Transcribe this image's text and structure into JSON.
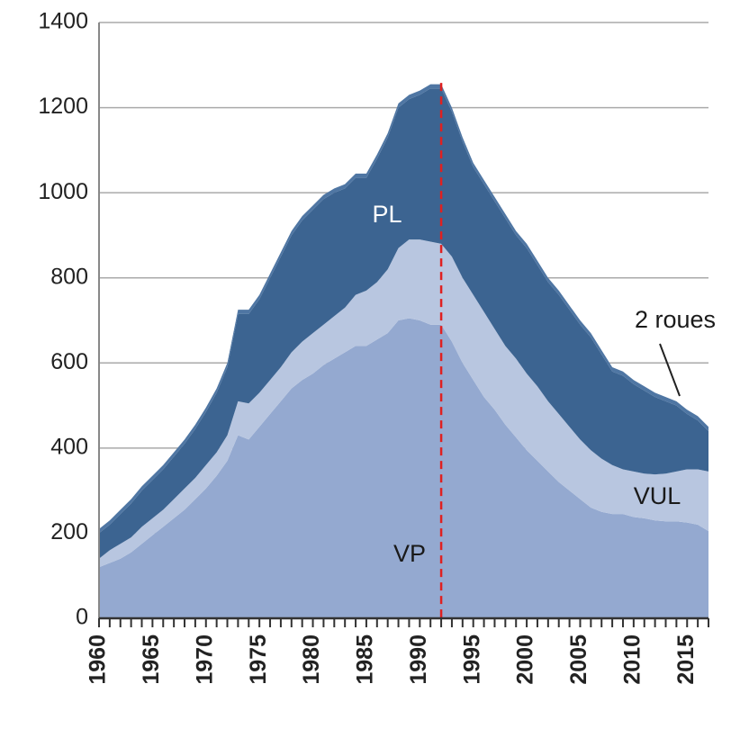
{
  "chart_data": {
    "type": "stacked_area",
    "x": [
      1960,
      1961,
      1962,
      1963,
      1964,
      1965,
      1966,
      1967,
      1968,
      1969,
      1970,
      1971,
      1972,
      1973,
      1974,
      1975,
      1976,
      1977,
      1978,
      1979,
      1980,
      1981,
      1982,
      1983,
      1984,
      1985,
      1986,
      1987,
      1988,
      1989,
      1990,
      1991,
      1992,
      1993,
      1994,
      1995,
      1996,
      1997,
      1998,
      1999,
      2000,
      2001,
      2002,
      2003,
      2004,
      2005,
      2006,
      2007,
      2008,
      2009,
      2010,
      2011,
      2012,
      2013,
      2014,
      2015,
      2016,
      2017
    ],
    "series": [
      {
        "name": "VP",
        "color": "#94a9d0",
        "values": [
          120,
          130,
          140,
          155,
          175,
          195,
          215,
          235,
          255,
          280,
          305,
          335,
          370,
          430,
          420,
          450,
          480,
          510,
          540,
          560,
          575,
          595,
          610,
          625,
          640,
          640,
          655,
          670,
          700,
          705,
          700,
          690,
          690,
          650,
          600,
          560,
          520,
          490,
          455,
          425,
          395,
          370,
          345,
          320,
          300,
          280,
          260,
          250,
          245,
          245,
          238,
          235,
          230,
          228,
          228,
          225,
          220,
          205
        ]
      },
      {
        "name": "VUL",
        "color": "#b8c6e0",
        "values": [
          20,
          30,
          35,
          35,
          40,
          40,
          40,
          45,
          50,
          50,
          55,
          55,
          60,
          80,
          85,
          80,
          80,
          80,
          85,
          90,
          95,
          95,
          100,
          105,
          120,
          130,
          135,
          150,
          170,
          185,
          190,
          195,
          190,
          200,
          200,
          200,
          200,
          190,
          185,
          185,
          180,
          175,
          165,
          160,
          150,
          140,
          135,
          125,
          115,
          105,
          107,
          105,
          108,
          112,
          117,
          125,
          130,
          140
        ]
      },
      {
        "name": "PL",
        "color": "#3c6491",
        "values": [
          60,
          60,
          70,
          80,
          85,
          90,
          95,
          100,
          105,
          115,
          125,
          140,
          160,
          205,
          210,
          220,
          240,
          260,
          275,
          285,
          290,
          295,
          290,
          280,
          275,
          265,
          290,
          310,
          330,
          330,
          340,
          360,
          365,
          340,
          320,
          300,
          300,
          300,
          300,
          290,
          295,
          285,
          280,
          280,
          275,
          270,
          265,
          245,
          220,
          220,
          205,
          195,
          182,
          170,
          155,
          130,
          115,
          95
        ]
      },
      {
        "name": "2 roues",
        "color": "#4f76a3",
        "values": [
          10,
          10,
          10,
          10,
          10,
          10,
          10,
          10,
          10,
          10,
          10,
          10,
          10,
          10,
          10,
          10,
          10,
          10,
          10,
          10,
          10,
          10,
          10,
          10,
          10,
          10,
          10,
          10,
          10,
          10,
          10,
          10,
          10,
          10,
          10,
          10,
          10,
          10,
          10,
          10,
          10,
          10,
          10,
          10,
          10,
          10,
          10,
          10,
          10,
          10,
          10,
          10,
          10,
          10,
          10,
          10,
          10,
          10
        ]
      }
    ],
    "xlim": [
      1960,
      2017
    ],
    "xticks": [
      1960,
      1965,
      1970,
      1975,
      1980,
      1985,
      1990,
      1995,
      2000,
      2005,
      2010,
      2015
    ],
    "ylim": [
      0,
      1400
    ],
    "yticks": [
      0,
      200,
      400,
      600,
      800,
      1000,
      1200,
      1400
    ],
    "grid": true,
    "reference_line": {
      "x": 1992,
      "color": "#e02020"
    }
  }
}
